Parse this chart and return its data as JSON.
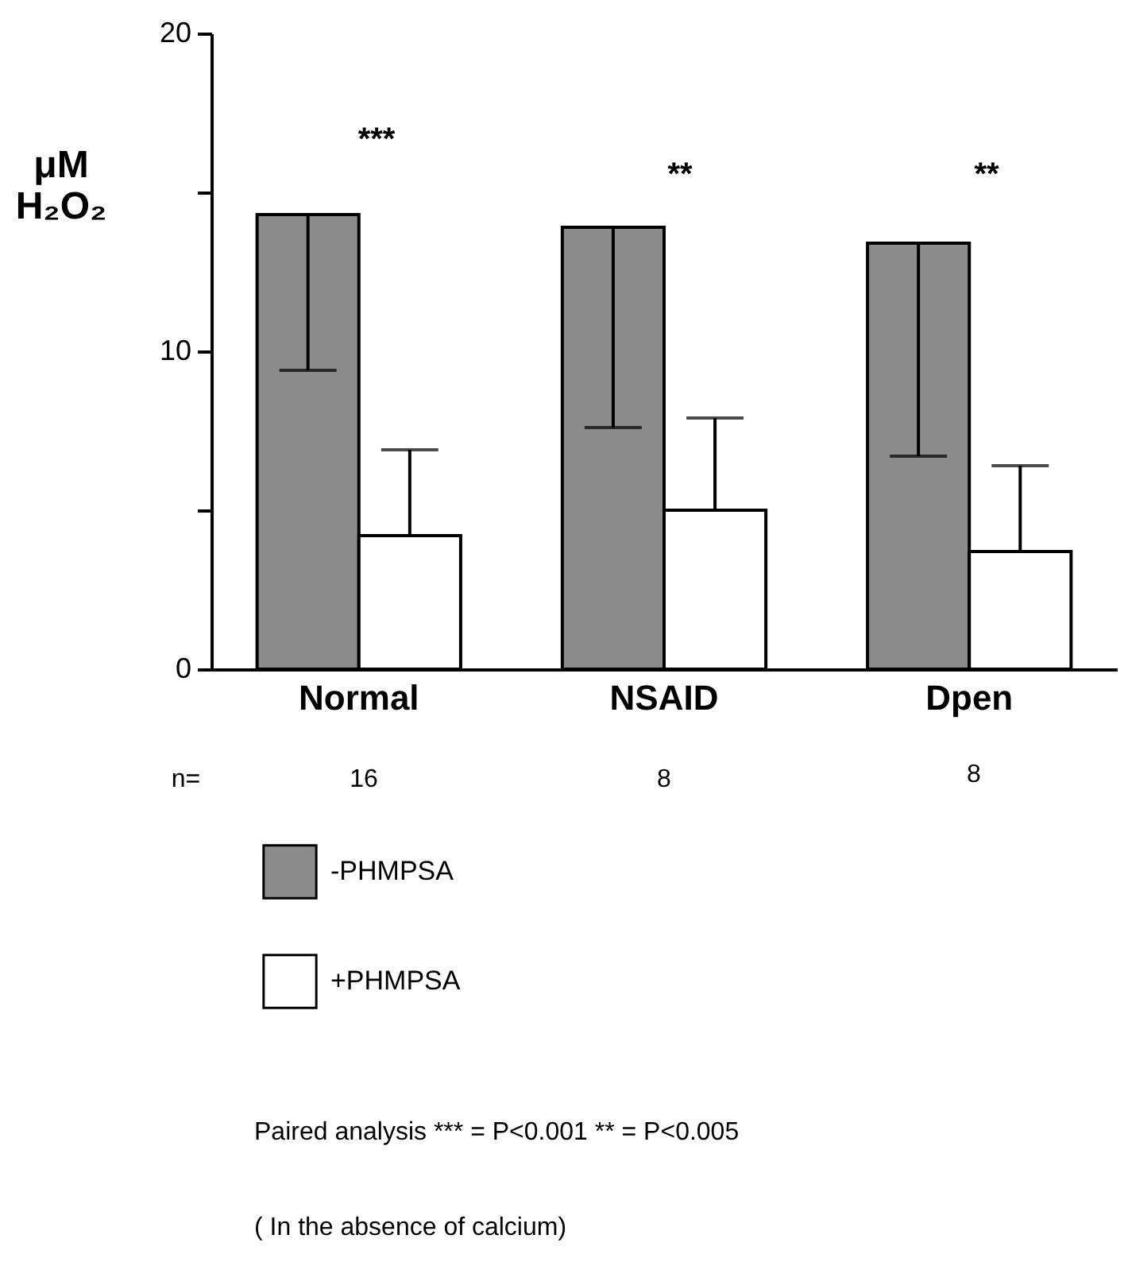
{
  "chart_data": {
    "type": "bar",
    "ylabel": "μM H₂O₂",
    "categories": [
      "Normal",
      "NSAID",
      "Dpen"
    ],
    "series": [
      {
        "name": "-PHMPSA",
        "color": "#8c8c8c",
        "values": [
          14.3,
          13.9,
          13.4
        ],
        "errors": [
          [
            9.4,
            14.3
          ],
          [
            7.6,
            13.9
          ],
          [
            6.7,
            13.4
          ]
        ]
      },
      {
        "name": "+PHMPSA",
        "color": "#ffffff",
        "values": [
          4.2,
          5.0,
          3.7
        ],
        "errors": [
          [
            4.2,
            6.9
          ],
          [
            5.0,
            7.9
          ],
          [
            3.7,
            6.4
          ]
        ]
      }
    ],
    "ylim": [
      0,
      20
    ],
    "yticks": [
      0,
      {
        "value": 5,
        "label": null
      },
      10,
      {
        "value": 15,
        "label": null
      },
      20
    ],
    "legend": "bottom left",
    "grid": false,
    "annotations": [
      "***",
      "**",
      "**",
      "n=",
      "16",
      "8",
      "8",
      "Paired analysis *** = P<0.001 ** = P<0.005",
      "( In the absence of calcium)"
    ]
  }
}
